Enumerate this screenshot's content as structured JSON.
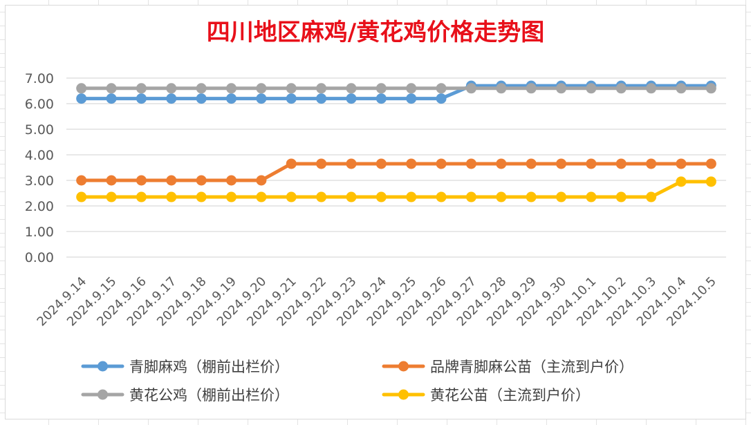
{
  "chart_data": {
    "type": "line",
    "title": "四川地区麻鸡/黄花鸡价格走势图",
    "xlabel": "",
    "ylabel": "",
    "ylim": [
      0,
      7
    ],
    "y_ticks": [
      "0.00",
      "1.00",
      "2.00",
      "3.00",
      "4.00",
      "5.00",
      "6.00",
      "7.00"
    ],
    "grid": "horizontal",
    "legend_position": "bottom",
    "categories": [
      "2024.9.14",
      "2024.9.15",
      "2024.9.16",
      "2024.9.17",
      "2024.9.18",
      "2024.9.19",
      "2024.9.20",
      "2024.9.21",
      "2024.9.22",
      "2024.9.23",
      "2024.9.24",
      "2024.9.25",
      "2024.9.26",
      "2024.9.27",
      "2024.9.28",
      "2024.9.29",
      "2024.9.30",
      "2024.10.1",
      "2024.10.2",
      "2024.10.3",
      "2024.10.4",
      "2024.10.5"
    ],
    "series": [
      {
        "name": "青脚麻鸡（棚前出栏价）",
        "color": "#5b9bd5",
        "values": [
          6.2,
          6.2,
          6.2,
          6.2,
          6.2,
          6.2,
          6.2,
          6.2,
          6.2,
          6.2,
          6.2,
          6.2,
          6.2,
          6.7,
          6.7,
          6.7,
          6.7,
          6.7,
          6.7,
          6.7,
          6.7,
          6.7
        ]
      },
      {
        "name": "品牌青脚麻公苗（主流到户价）",
        "color": "#ed7d31",
        "values": [
          3.0,
          3.0,
          3.0,
          3.0,
          3.0,
          3.0,
          3.0,
          3.65,
          3.65,
          3.65,
          3.65,
          3.65,
          3.65,
          3.65,
          3.65,
          3.65,
          3.65,
          3.65,
          3.65,
          3.65,
          3.65,
          3.65
        ]
      },
      {
        "name": "黄花公鸡（棚前出栏价）",
        "color": "#a5a5a5",
        "values": [
          6.6,
          6.6,
          6.6,
          6.6,
          6.6,
          6.6,
          6.6,
          6.6,
          6.6,
          6.6,
          6.6,
          6.6,
          6.6,
          6.6,
          6.6,
          6.6,
          6.6,
          6.6,
          6.6,
          6.6,
          6.6,
          6.6
        ]
      },
      {
        "name": "黄花公苗（主流到户价）",
        "color": "#ffc000",
        "values": [
          2.35,
          2.35,
          2.35,
          2.35,
          2.35,
          2.35,
          2.35,
          2.35,
          2.35,
          2.35,
          2.35,
          2.35,
          2.35,
          2.35,
          2.35,
          2.35,
          2.35,
          2.35,
          2.35,
          2.35,
          2.95,
          2.95
        ]
      }
    ]
  }
}
